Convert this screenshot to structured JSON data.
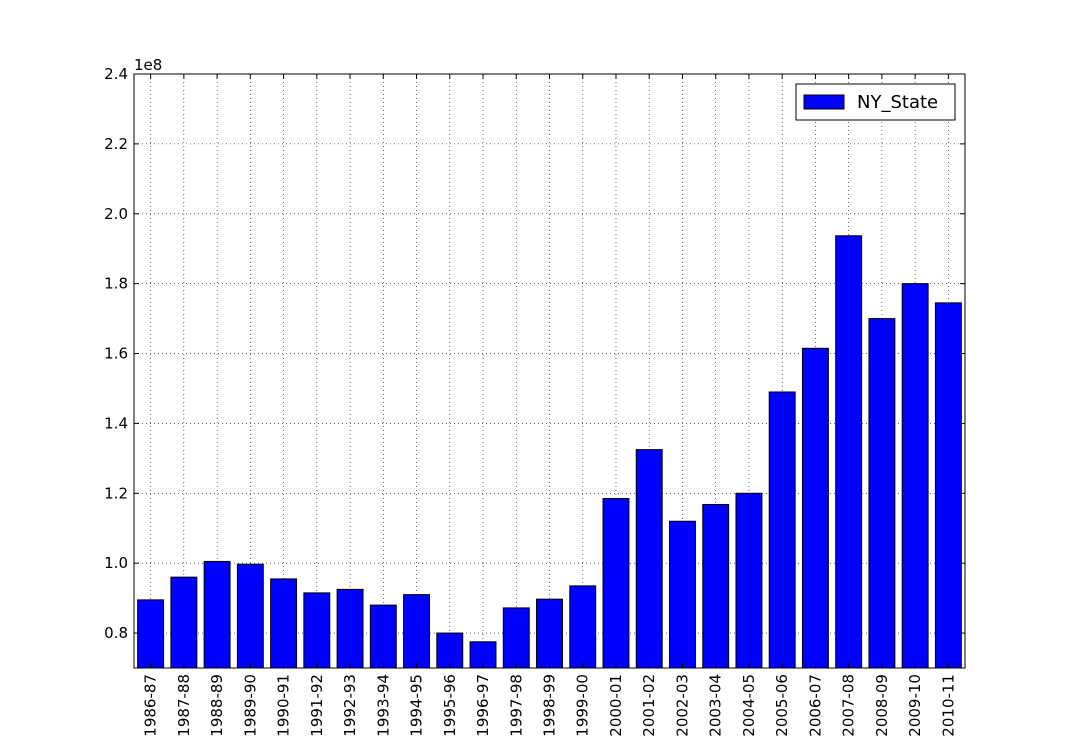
{
  "chart_data": {
    "type": "bar",
    "title": "",
    "xlabel": "",
    "ylabel": "",
    "y_offset_label": "1e8",
    "ylim": [
      0.7,
      2.4
    ],
    "y_ticks": [
      "0.8",
      "1.0",
      "1.2",
      "1.4",
      "1.6",
      "1.8",
      "2.0",
      "2.2",
      "2.4"
    ],
    "grid": true,
    "legend_position": "top-right",
    "categories": [
      "1986-87",
      "1987-88",
      "1988-89",
      "1989-90",
      "1990-91",
      "1991-92",
      "1992-93",
      "1993-94",
      "1994-95",
      "1995-96",
      "1996-97",
      "1997-98",
      "1998-99",
      "1999-00",
      "2000-01",
      "2001-02",
      "2002-03",
      "2003-04",
      "2004-05",
      "2005-06",
      "2006-07",
      "2007-08",
      "2008-09",
      "2009-10",
      "2010-11"
    ],
    "series": [
      {
        "name": "NY_State",
        "color": "#0000ff",
        "values": [
          0.895,
          0.96,
          1.005,
          0.997,
          0.955,
          0.915,
          0.925,
          0.88,
          0.91,
          0.8,
          0.775,
          0.872,
          0.897,
          0.935,
          1.185,
          1.325,
          1.12,
          1.168,
          1.2,
          1.49,
          1.615,
          1.937,
          1.7,
          1.8,
          1.745
        ]
      }
    ]
  }
}
